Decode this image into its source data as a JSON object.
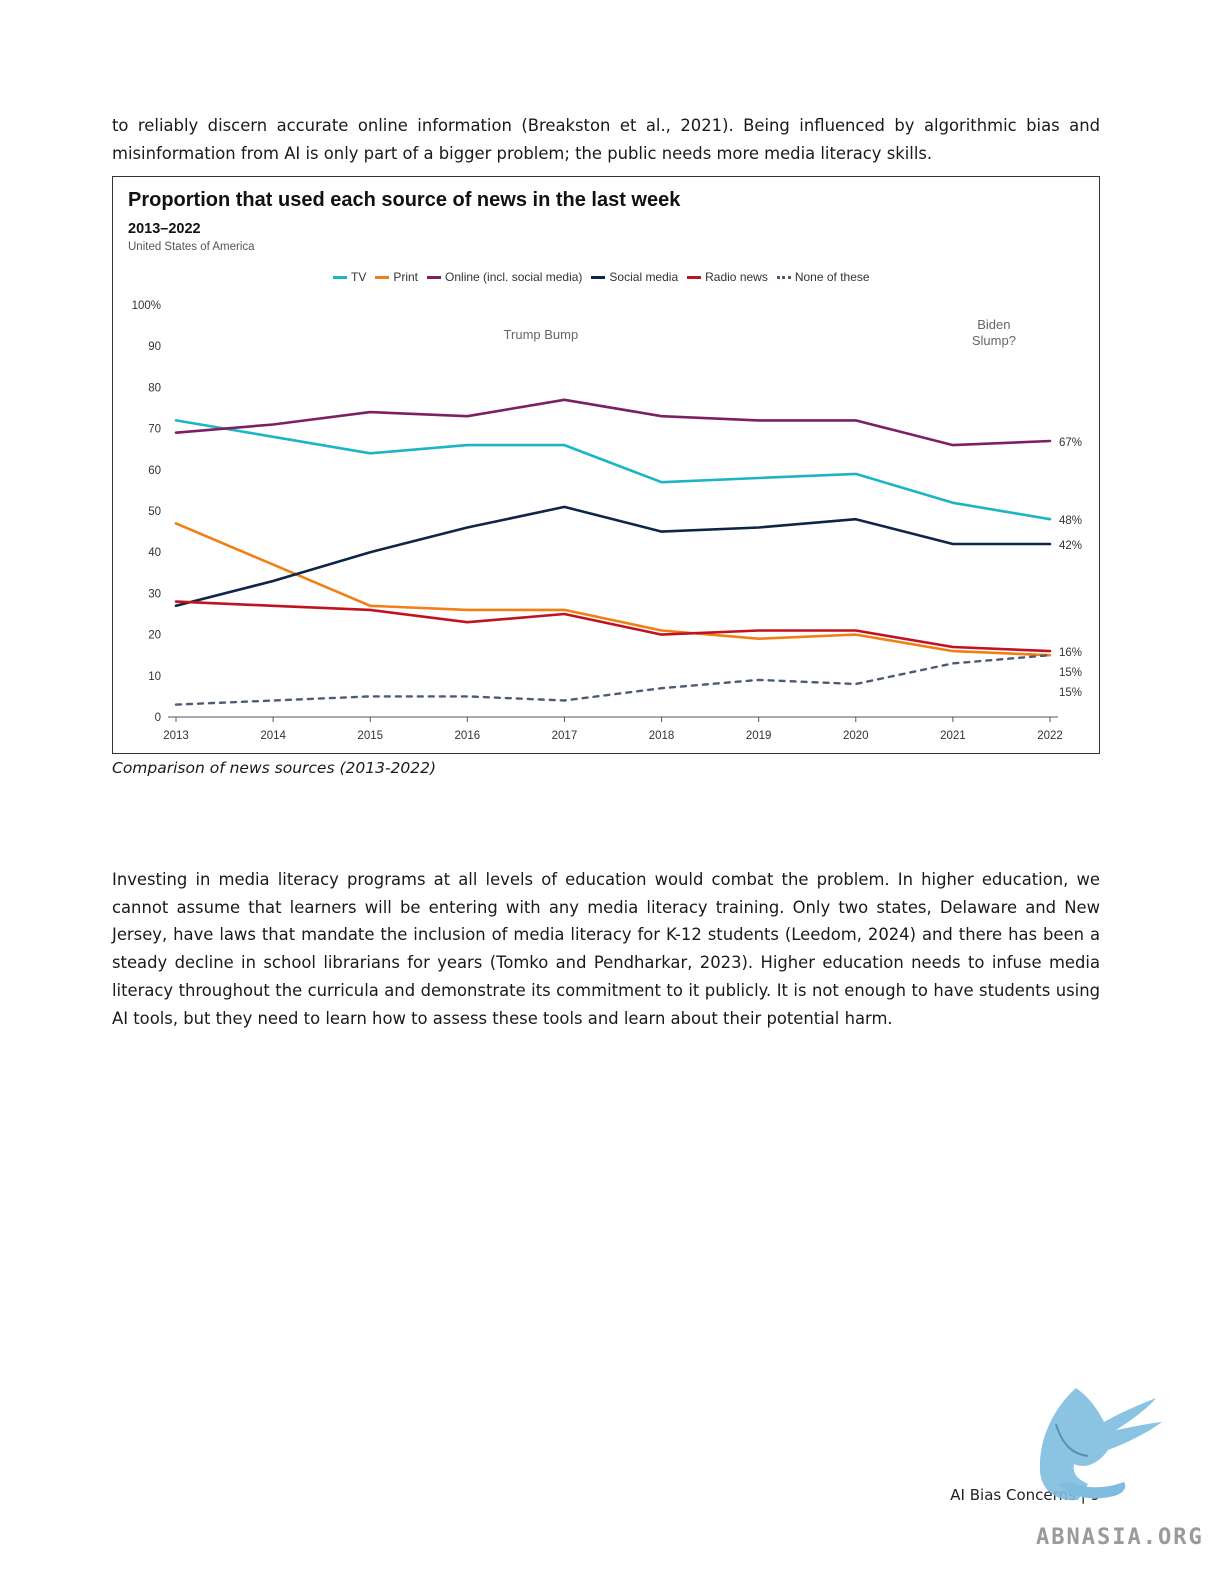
{
  "paragraph_top": "to reliably discern accurate online information (Breakston et al., 2021). Being influenced by algorithmic bias and misinformation from AI is only part of a bigger problem; the public needs more media literacy skills.",
  "figure": {
    "title": "Proportion that used each source of news in the last week",
    "subtitle": "2013–2022",
    "region": "United States of America",
    "annotations": {
      "trump": "Trump Bump",
      "biden_line1": "Biden",
      "biden_line2": "Slump?"
    }
  },
  "chart_data": {
    "type": "line",
    "x": [
      2013,
      2014,
      2015,
      2016,
      2017,
      2018,
      2019,
      2020,
      2021,
      2022
    ],
    "x_tick_labels": [
      "2013",
      "2014",
      "2015",
      "2016",
      "2017",
      "2018",
      "2019",
      "2020",
      "2021",
      "2022"
    ],
    "y_tick_labels": [
      "0",
      "10",
      "20",
      "30",
      "40",
      "50",
      "60",
      "70",
      "80",
      "90",
      "100%"
    ],
    "ylim": [
      0,
      100
    ],
    "legend_position": "top-center",
    "series": [
      {
        "name": "TV",
        "color": "#1db5c6",
        "style": "solid",
        "values": [
          72,
          68,
          64,
          66,
          66,
          57,
          58,
          59,
          52,
          48
        ],
        "end_label": "48%"
      },
      {
        "name": "Print",
        "color": "#f07f15",
        "style": "solid",
        "values": [
          47,
          37,
          27,
          26,
          26,
          21,
          19,
          20,
          16,
          15
        ],
        "end_label": "15%"
      },
      {
        "name": "Online (incl. social media)",
        "color": "#7d1f63",
        "style": "solid",
        "values": [
          69,
          71,
          74,
          73,
          77,
          73,
          72,
          72,
          66,
          67
        ],
        "end_label": "67%"
      },
      {
        "name": "Social media",
        "color": "#0e2548",
        "style": "solid",
        "values": [
          27,
          33,
          40,
          46,
          51,
          45,
          46,
          48,
          42,
          42
        ],
        "end_label": "42%"
      },
      {
        "name": "Radio news",
        "color": "#c1121f",
        "style": "solid",
        "values": [
          28,
          27,
          26,
          23,
          25,
          20,
          21,
          21,
          17,
          16
        ],
        "end_label": "16%"
      },
      {
        "name": "None of these",
        "color": "#4d5b75",
        "style": "dotted",
        "values": [
          3,
          4,
          5,
          5,
          4,
          7,
          9,
          8,
          13,
          15
        ],
        "end_label": "15%"
      }
    ]
  },
  "caption": "Comparison of news sources (2013-2022)",
  "paragraph_bottom": "Investing in media literacy programs at all levels of education would combat the problem. In higher education, we cannot assume that learners will be entering with any media literacy training. Only two states, Delaware and New Jersey, have laws that mandate the inclusion of media literacy for K-12 students (Leedom, 2024) and there has been a steady decline in school librarians for years (Tomko and Pendharkar, 2023).  Higher education needs to infuse media literacy throughout the curricula and demonstrate its commitment to it publicly. It is not enough to have students using AI tools, but they need to learn how to assess these tools and learn about their potential harm.",
  "footer": {
    "title": "AI Bias Concerns",
    "separator": "|",
    "page": "9"
  },
  "watermark": {
    "text": "ABNASIA.ORG",
    "color": "#7ebde0"
  }
}
